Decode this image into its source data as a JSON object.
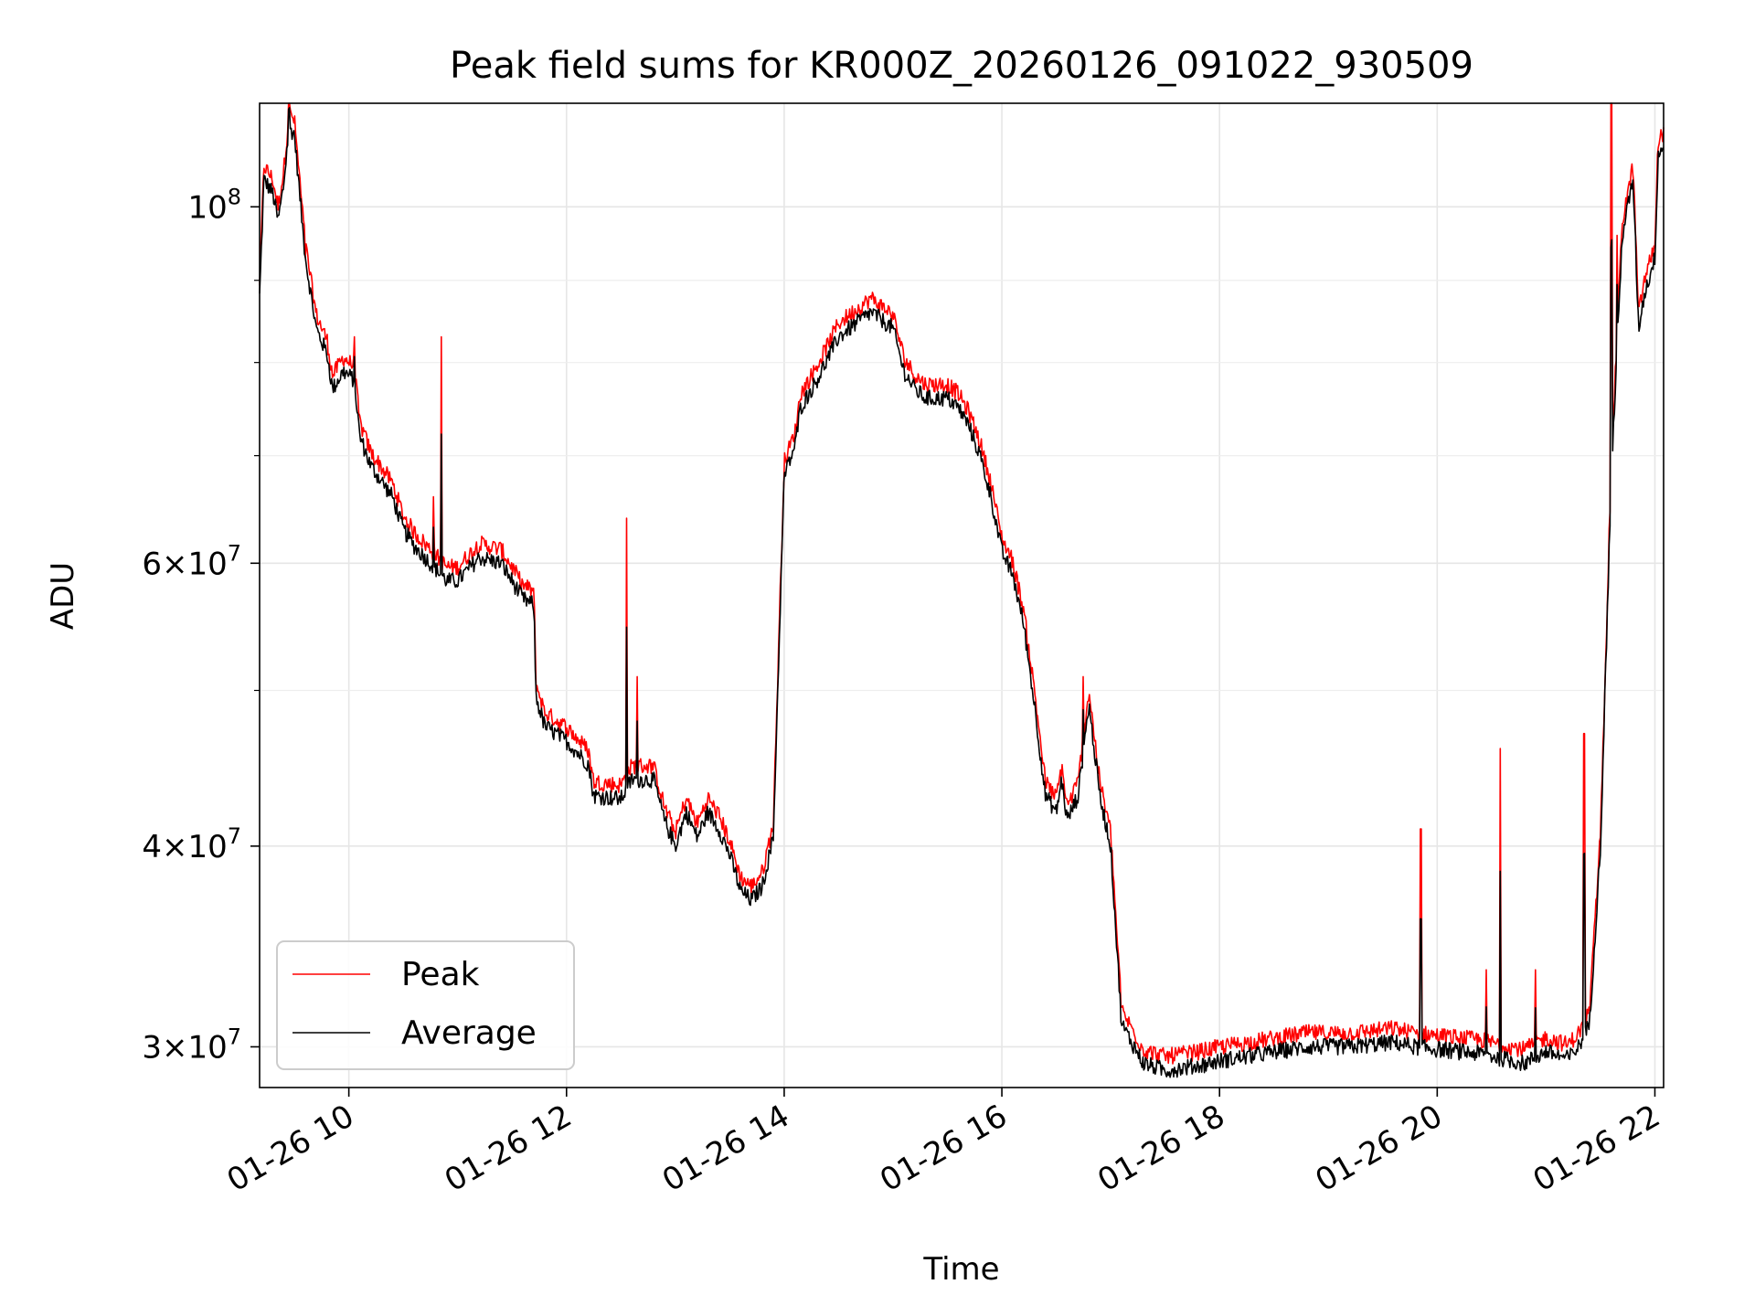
{
  "chart_data": {
    "type": "line",
    "title": "Peak field sums for KR000Z_20260126_091022_930509",
    "xlabel": "Time",
    "ylabel": "ADU",
    "yscale": "log",
    "x_unit": "hours since 2026-01-26 00:00",
    "xlim": [
      9.18,
      22.08
    ],
    "ylim": [
      28300000,
      116000000
    ],
    "grid": true,
    "legend_position": "lower-left",
    "x_ticks": [
      {
        "value": 10,
        "label": "01-26 10"
      },
      {
        "value": 12,
        "label": "01-26 12"
      },
      {
        "value": 14,
        "label": "01-26 14"
      },
      {
        "value": 16,
        "label": "01-26 16"
      },
      {
        "value": 18,
        "label": "01-26 18"
      },
      {
        "value": 20,
        "label": "01-26 20"
      },
      {
        "value": 22,
        "label": "01-26 22"
      }
    ],
    "y_ticks": [
      {
        "value": 30000000,
        "mant": "3",
        "exp": "7"
      },
      {
        "value": 40000000,
        "mant": "4",
        "exp": "7"
      },
      {
        "value": 60000000,
        "mant": "6",
        "exp": "7"
      },
      {
        "value": 100000000,
        "mant": "",
        "exp": "8"
      }
    ],
    "y_minor_ticks": [
      50000000,
      70000000,
      80000000,
      90000000
    ],
    "average_profile": [
      [
        9.18,
        88000000
      ],
      [
        9.22,
        104000000
      ],
      [
        9.3,
        102000000
      ],
      [
        9.35,
        98000000
      ],
      [
        9.4,
        103000000
      ],
      [
        9.45,
        112000000
      ],
      [
        9.5,
        111000000
      ],
      [
        9.6,
        93000000
      ],
      [
        9.7,
        84000000
      ],
      [
        9.8,
        81000000
      ],
      [
        9.85,
        77000000
      ],
      [
        9.95,
        79000000
      ],
      [
        10.05,
        78000000
      ],
      [
        10.1,
        72000000
      ],
      [
        10.2,
        69000000
      ],
      [
        10.4,
        66000000
      ],
      [
        10.5,
        63000000
      ],
      [
        10.6,
        61500000
      ],
      [
        10.8,
        59500000
      ],
      [
        10.9,
        58500000
      ],
      [
        11.0,
        58500000
      ],
      [
        11.1,
        59500000
      ],
      [
        11.2,
        60500000
      ],
      [
        11.4,
        60000000
      ],
      [
        11.6,
        57000000
      ],
      [
        11.7,
        56500000
      ],
      [
        11.72,
        49500000
      ],
      [
        11.8,
        47500000
      ],
      [
        12.0,
        46500000
      ],
      [
        12.2,
        45000000
      ],
      [
        12.25,
        43000000
      ],
      [
        12.5,
        42800000
      ],
      [
        12.6,
        44000000
      ],
      [
        12.8,
        44000000
      ],
      [
        12.9,
        41500000
      ],
      [
        13.0,
        40000000
      ],
      [
        13.1,
        42000000
      ],
      [
        13.2,
        40500000
      ],
      [
        13.3,
        42000000
      ],
      [
        13.4,
        41000000
      ],
      [
        13.5,
        39500000
      ],
      [
        13.6,
        37500000
      ],
      [
        13.7,
        37000000
      ],
      [
        13.8,
        37800000
      ],
      [
        13.9,
        40500000
      ],
      [
        14.0,
        68000000
      ],
      [
        14.1,
        71000000
      ],
      [
        14.15,
        75000000
      ],
      [
        14.3,
        78000000
      ],
      [
        14.5,
        83000000
      ],
      [
        14.7,
        85000000
      ],
      [
        14.8,
        86000000
      ],
      [
        15.0,
        84000000
      ],
      [
        15.1,
        79000000
      ],
      [
        15.2,
        77000000
      ],
      [
        15.3,
        76000000
      ],
      [
        15.5,
        76000000
      ],
      [
        15.6,
        75000000
      ],
      [
        15.7,
        73000000
      ],
      [
        15.8,
        70000000
      ],
      [
        15.9,
        66000000
      ],
      [
        16.0,
        61000000
      ],
      [
        16.1,
        59000000
      ],
      [
        16.2,
        55000000
      ],
      [
        16.3,
        49000000
      ],
      [
        16.4,
        43000000
      ],
      [
        16.5,
        42000000
      ],
      [
        16.55,
        44000000
      ],
      [
        16.6,
        41500000
      ],
      [
        16.7,
        43000000
      ],
      [
        16.8,
        49000000
      ],
      [
        16.9,
        43000000
      ],
      [
        17.0,
        40000000
      ],
      [
        17.1,
        31000000
      ],
      [
        17.3,
        29300000
      ],
      [
        17.5,
        29000000
      ],
      [
        17.8,
        29200000
      ],
      [
        18.0,
        29400000
      ],
      [
        18.4,
        29700000
      ],
      [
        18.8,
        30000000
      ],
      [
        19.2,
        30000000
      ],
      [
        19.6,
        30200000
      ],
      [
        19.8,
        30000000
      ],
      [
        20.0,
        29900000
      ],
      [
        20.4,
        29700000
      ],
      [
        20.8,
        29300000
      ],
      [
        21.0,
        29800000
      ],
      [
        21.2,
        29500000
      ],
      [
        21.3,
        30000000
      ],
      [
        21.4,
        31000000
      ],
      [
        21.5,
        40000000
      ],
      [
        21.6,
        68000000
      ],
      [
        21.7,
        96000000
      ],
      [
        21.8,
        104000000
      ],
      [
        21.85,
        84000000
      ],
      [
        21.9,
        88000000
      ],
      [
        22.0,
        93000000
      ],
      [
        22.03,
        108000000
      ],
      [
        22.08,
        109000000
      ]
    ],
    "peak_spikes": [
      [
        9.45,
        118000000
      ],
      [
        9.6,
        93000000
      ],
      [
        10.05,
        83000000
      ],
      [
        10.85,
        83000000
      ],
      [
        10.78,
        66000000
      ],
      [
        12.55,
        64000000
      ],
      [
        12.65,
        51000000
      ],
      [
        16.75,
        51000000
      ],
      [
        19.85,
        41000000
      ],
      [
        20.45,
        33500000
      ],
      [
        20.58,
        46000000
      ],
      [
        20.9,
        33500000
      ],
      [
        21.35,
        47000000
      ],
      [
        21.6,
        117000000
      ],
      [
        21.65,
        96000000
      ]
    ],
    "series": [
      {
        "name": "Peak",
        "color": "#ff0000",
        "offset_factor": 1.02,
        "noise": 0.012,
        "stroke_width": 0.8
      },
      {
        "name": "Average",
        "color": "#000000",
        "offset_factor": 1.0,
        "noise": 0.012,
        "stroke_width": 0.8
      }
    ]
  }
}
